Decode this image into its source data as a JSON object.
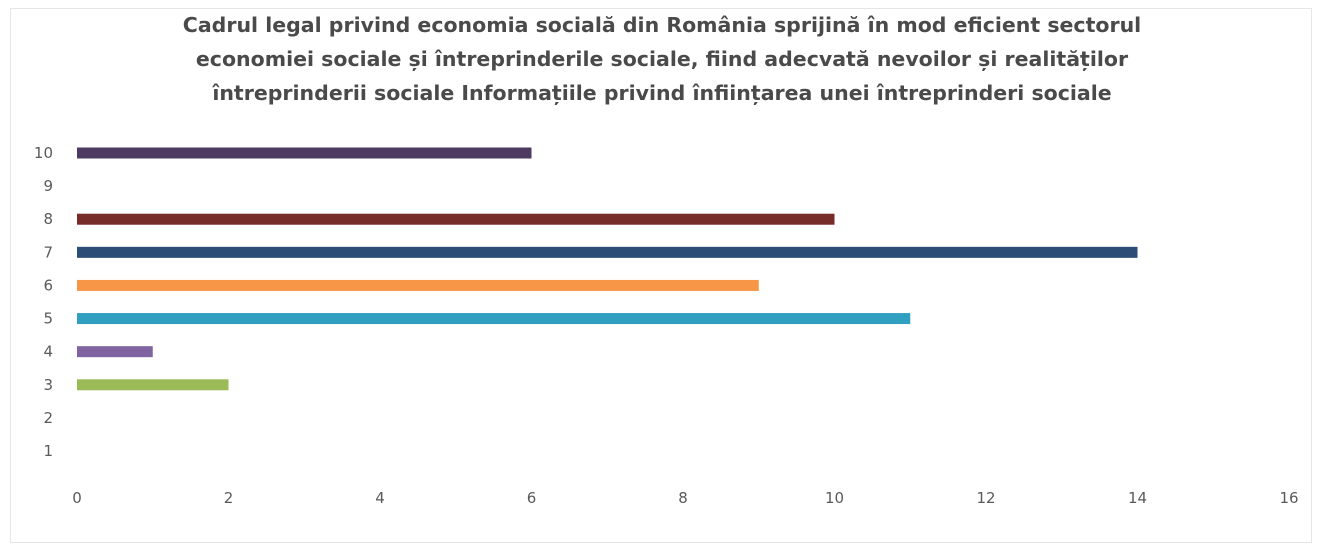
{
  "chart_data": {
    "type": "bar",
    "orientation": "horizontal",
    "title_lines": [
      "Cadrul legal privind economia socială din România sprijină în mod eficient sectorul",
      "economiei sociale și întreprinderile sociale, fiind adecvată nevoilor și realităților",
      "întreprinderii sociale Informațiile privind înființarea unei întreprinderi sociale"
    ],
    "categories": [
      "1",
      "2",
      "3",
      "4",
      "5",
      "6",
      "7",
      "8",
      "9",
      "10"
    ],
    "values": [
      0,
      0,
      2,
      1,
      11,
      9,
      14,
      10,
      0,
      6
    ],
    "colors": [
      "#4e81bd",
      "#c0504d",
      "#9bbb59",
      "#8064a2",
      "#31a0c0",
      "#f79646",
      "#2c4d75",
      "#772c2a",
      "#5f7530",
      "#4d3b62"
    ],
    "x_ticks": [
      "0",
      "2",
      "4",
      "6",
      "8",
      "10",
      "12",
      "14",
      "16"
    ],
    "xlim": [
      0,
      16
    ],
    "grid": false,
    "legend": "none"
  }
}
